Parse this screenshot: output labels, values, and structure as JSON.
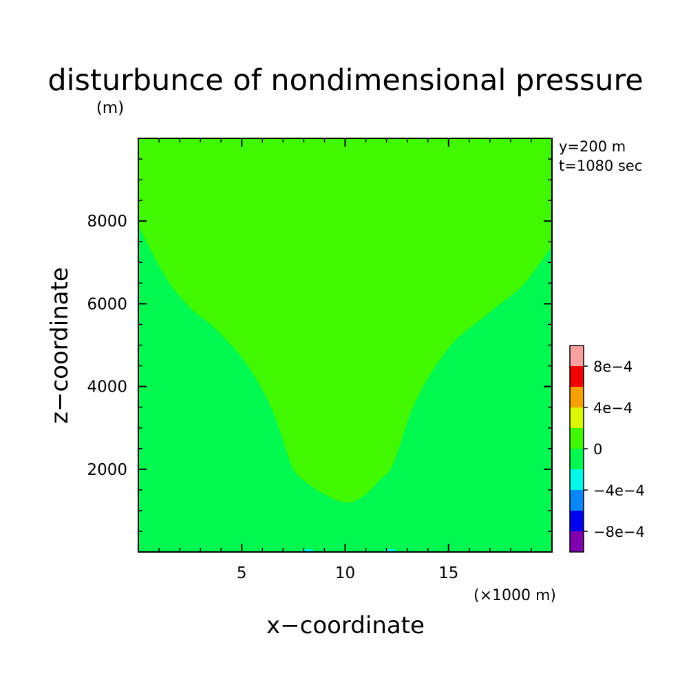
{
  "chart_data": {
    "type": "heatmap",
    "title": "disturbunce of nondimensional pressure",
    "ylabel": "z−coordinate",
    "yunit": "(m)",
    "xlabel": "x−coordinate",
    "xunit": "(×1000 m)",
    "annotations": [
      "y=200 m",
      "t=1080 sec"
    ],
    "xlim": [
      0,
      20
    ],
    "ylim": [
      0,
      10000
    ],
    "xticks": [
      5,
      10,
      15
    ],
    "xtick_labels": [
      "5",
      "10",
      "15"
    ],
    "yticks": [
      2000,
      4000,
      6000,
      8000
    ],
    "ytick_labels": [
      "2000",
      "4000",
      "6000",
      "8000"
    ],
    "legend": {
      "position": "right",
      "levels": [
        {
          "range": [
            0.0008,
            0.001
          ],
          "color": "#f8a0a0"
        },
        {
          "range": [
            0.0006,
            0.0008
          ],
          "color": "#f00000"
        },
        {
          "range": [
            0.0004,
            0.0006
          ],
          "color": "#f8a000"
        },
        {
          "range": [
            0.0002,
            0.0004
          ],
          "color": "#d8f800"
        },
        {
          "range": [
            0,
            0.0002
          ],
          "color": "#40f800"
        },
        {
          "range": [
            -0.0002,
            0
          ],
          "color": "#00f850"
        },
        {
          "range": [
            -0.0004,
            -0.0002
          ],
          "color": "#00f8e8"
        },
        {
          "range": [
            -0.0006,
            -0.0004
          ],
          "color": "#0888f8"
        },
        {
          "range": [
            -0.0008,
            -0.0006
          ],
          "color": "#0000f0"
        },
        {
          "range": [
            -0.001,
            -0.0008
          ],
          "color": "#8000b0"
        }
      ],
      "tick_values": [
        0.0008,
        0.0004,
        0,
        -0.0004,
        -0.0008
      ],
      "tick_labels": [
        "8e−4",
        "4e−4",
        "0",
        "−4e−4",
        "−8e−4"
      ]
    },
    "regions": [
      {
        "level": "0 to 2e−4",
        "color": "#40f800",
        "boundary_x_km": [
          0.0,
          0.7,
          1.5,
          2.5,
          3.5,
          4.3,
          5.0,
          5.8,
          6.5,
          7.0,
          7.5,
          8.2,
          9.0,
          9.6,
          10.3,
          11.0,
          11.7,
          12.2,
          12.6,
          13.2,
          14.0,
          14.8,
          15.5,
          16.5,
          17.5,
          18.5,
          19.3,
          20.0
        ],
        "boundary_z_m": [
          7900,
          7200,
          6500,
          5900,
          5500,
          5100,
          4700,
          4100,
          3400,
          2700,
          2000,
          1650,
          1400,
          1250,
          1200,
          1400,
          1750,
          2000,
          2500,
          3400,
          4200,
          4800,
          5200,
          5600,
          6000,
          6400,
          6900,
          7400
        ]
      },
      {
        "level": "−2e−4 to 0",
        "color": "#00f850",
        "extent": "remaining area below the 0 contour"
      },
      {
        "level": "−4e−4 to −2e−4",
        "color": "#00f8e8",
        "patches_x_km": [
          [
            7.8,
            8.6
          ],
          [
            11.8,
            12.6
          ]
        ],
        "patch_top_z_m": 80
      }
    ]
  }
}
